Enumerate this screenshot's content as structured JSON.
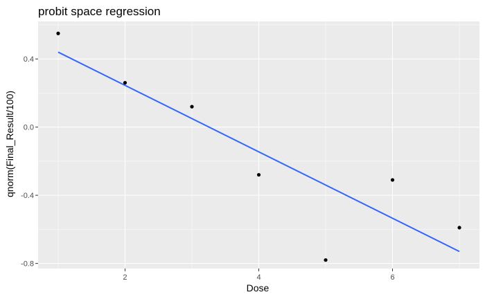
{
  "chart_data": {
    "type": "scatter",
    "title": "probit space regression",
    "xlabel": "Dose",
    "ylabel": "qnorm(Final_Result/100)",
    "xlim": [
      0.7,
      7.3
    ],
    "ylim": [
      -0.83,
      0.62
    ],
    "x_ticks": [
      2,
      4,
      6
    ],
    "y_ticks": [
      0.4,
      0.0,
      -0.4,
      -0.8
    ],
    "x_tick_labels": [
      "2",
      "4",
      "6"
    ],
    "y_tick_labels": [
      "0.4",
      "0.0",
      "-0.4",
      "-0.8"
    ],
    "grid": true,
    "legend": "none",
    "points": {
      "x": [
        1,
        2,
        3,
        4,
        5,
        6,
        7
      ],
      "y": [
        0.55,
        0.26,
        0.12,
        -0.28,
        -0.78,
        -0.31,
        -0.59
      ]
    },
    "regression_line": {
      "x": [
        1,
        7
      ],
      "y": [
        0.44,
        -0.73
      ]
    },
    "colors": {
      "panel": "#ebebeb",
      "grid": "#ffffff",
      "point": "#000000",
      "line": "#3366ff"
    }
  }
}
